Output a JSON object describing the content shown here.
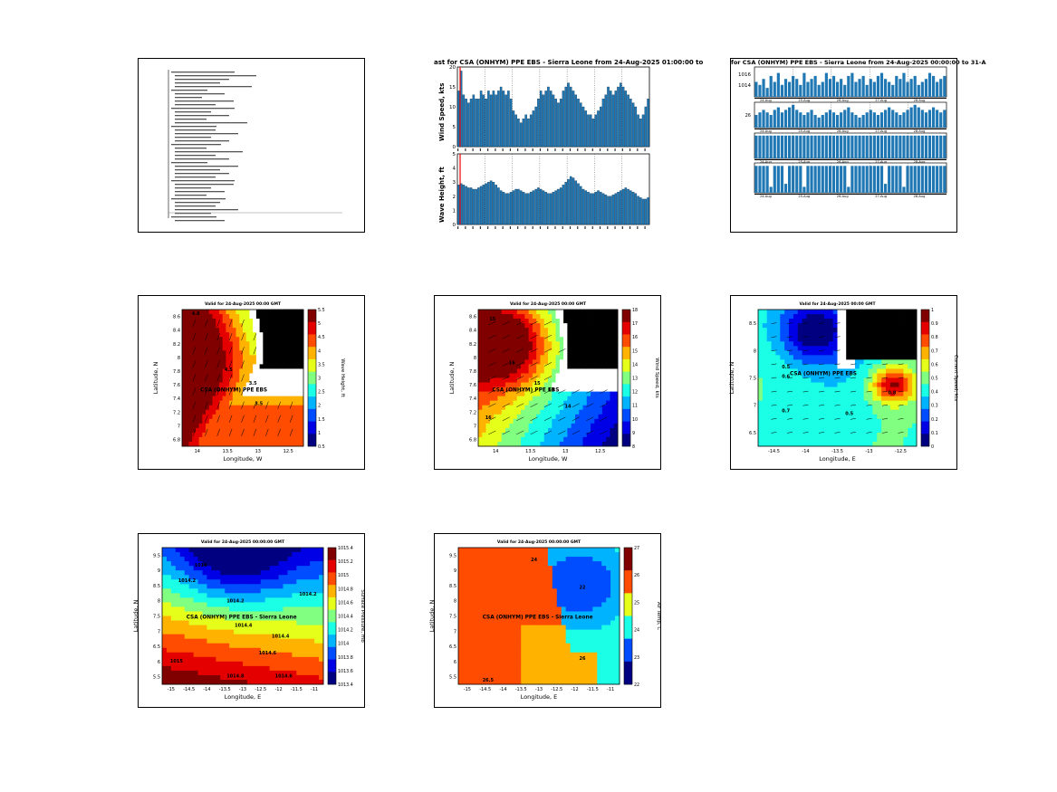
{
  "panels": {
    "report": {
      "label": "forecast-summary-text"
    },
    "wind_wave_bars": {
      "title": "ast for CSA (ONHYM) PPE EBS - Sierra Leone from 24-Aug-2025 01:00:00 to",
      "top_ylabel": "Wind Speed, kts",
      "bottom_ylabel": "Wave Height, ft",
      "top_ylim": [
        0,
        20
      ],
      "top_yticks": [
        "0",
        "5",
        "10",
        "15",
        "20"
      ],
      "bottom_ylim": [
        0,
        5
      ],
      "bottom_yticks": [
        "0",
        "1",
        "2",
        "3",
        "4",
        "5"
      ],
      "wind_values": [
        14,
        19,
        13,
        12,
        11,
        12,
        13,
        12,
        12,
        14,
        13,
        12,
        14,
        13,
        14,
        13,
        14,
        15,
        14,
        13,
        14,
        12,
        9,
        8,
        7,
        6,
        7,
        8,
        7,
        8,
        9,
        10,
        12,
        14,
        13,
        14,
        15,
        14,
        13,
        12,
        11,
        12,
        14,
        15,
        16,
        15,
        14,
        13,
        12,
        11,
        10,
        9,
        8,
        8,
        7,
        8,
        9,
        10,
        12,
        13,
        15,
        14,
        13,
        14,
        15,
        16,
        15,
        14,
        13,
        12,
        11,
        10,
        8,
        7,
        8,
        10,
        12
      ],
      "wave_values": [
        2.8,
        2.9,
        2.8,
        2.7,
        2.6,
        2.6,
        2.5,
        2.5,
        2.6,
        2.7,
        2.8,
        2.9,
        3.0,
        3.1,
        3.0,
        2.8,
        2.6,
        2.4,
        2.3,
        2.2,
        2.2,
        2.3,
        2.4,
        2.5,
        2.5,
        2.4,
        2.3,
        2.2,
        2.2,
        2.3,
        2.4,
        2.5,
        2.6,
        2.5,
        2.4,
        2.3,
        2.2,
        2.2,
        2.3,
        2.4,
        2.5,
        2.6,
        2.8,
        3.0,
        3.2,
        3.4,
        3.3,
        3.1,
        2.9,
        2.7,
        2.5,
        2.4,
        2.3,
        2.2,
        2.2,
        2.3,
        2.4,
        2.3,
        2.2,
        2.1,
        2.0,
        2.0,
        2.1,
        2.2,
        2.3,
        2.4,
        2.5,
        2.6,
        2.5,
        2.4,
        2.3,
        2.2,
        2.0,
        1.9,
        1.8,
        1.8,
        1.9
      ]
    },
    "multi_bars": {
      "title": "for CSA (ONHYM) PPE EBS - Sierra Leone from 24-Aug-2025 00:00:00 to 31-A",
      "yticks_top": [
        "1016",
        "1014"
      ],
      "mid_tick": "26",
      "date_labels": [
        "24-Aug",
        "25-Aug",
        "26-Aug",
        "27-Aug",
        "28-Aug"
      ],
      "row1": [
        5,
        4,
        6,
        3,
        7,
        5,
        8,
        4,
        6,
        5,
        7,
        6,
        4,
        8,
        5,
        6,
        7,
        4,
        5,
        8,
        6,
        7,
        5,
        6,
        4,
        7,
        8,
        5,
        6,
        7,
        4,
        6,
        5,
        7,
        8,
        6,
        5,
        4,
        7,
        6,
        8,
        5,
        6,
        7,
        4,
        5,
        6,
        8,
        7,
        5,
        6,
        7
      ],
      "row2": [
        5,
        6,
        7,
        6,
        5,
        7,
        8,
        6,
        7,
        8,
        9,
        7,
        6,
        5,
        6,
        7,
        5,
        4,
        5,
        6,
        7,
        6,
        5,
        6,
        7,
        8,
        6,
        5,
        4,
        5,
        6,
        7,
        6,
        5,
        6,
        7,
        8,
        7,
        6,
        5,
        6,
        7,
        8,
        9,
        8,
        7,
        6,
        7,
        8,
        7,
        6,
        7
      ],
      "row3": [
        9,
        9,
        9,
        9,
        9,
        9,
        9,
        9,
        9,
        9,
        9,
        9,
        9,
        9,
        9,
        9,
        9,
        9,
        9,
        9,
        9,
        9,
        9,
        9,
        9,
        9,
        9,
        9,
        9,
        9,
        9,
        9,
        9,
        9,
        9,
        9,
        9,
        9,
        9,
        9,
        9,
        9,
        9,
        9,
        9,
        9,
        9,
        9,
        9,
        9,
        9,
        9
      ],
      "row4": [
        9,
        9,
        9,
        9,
        2,
        9,
        9,
        9,
        3,
        9,
        9,
        9,
        9,
        2,
        9,
        9,
        9,
        9,
        9,
        9,
        9,
        9,
        9,
        9,
        9,
        2,
        9,
        9,
        9,
        9,
        9,
        9,
        9,
        9,
        9,
        3,
        9,
        9,
        9,
        9,
        2,
        9,
        9,
        9,
        9,
        9,
        9,
        9,
        9,
        9,
        9,
        9
      ]
    },
    "map_wave": {
      "title": "Valid for 24-Aug-2025 00:00 GMT",
      "xlabel": "Longitude, W",
      "ylabel": "Latitude, N",
      "site_label": "CSA (ONHYM) PPE EBS",
      "xticks": [
        "14",
        "13.5",
        "13",
        "12.5"
      ],
      "yticks": [
        "8.6",
        "8.4",
        "8.2",
        "8",
        "7.8",
        "7.6",
        "7.4",
        "7.2",
        "7",
        "6.8"
      ],
      "colorbar_label": "Wave Height, ft",
      "colorbar_ticks": [
        "5.5",
        "5",
        "4.5",
        "4",
        "3.5",
        "3",
        "2.5",
        "2",
        "1.5",
        "1",
        "0.5"
      ],
      "contour_labels": [
        "4.8",
        "4.5",
        "3.5",
        "3.5"
      ]
    },
    "map_wind": {
      "title": "Valid for 24-Aug-2025 00:00 GMT",
      "xlabel": "Longitude, W",
      "ylabel": "Latitude, N",
      "site_label": "CSA (ONHYM) PPE EBS",
      "xticks": [
        "14",
        "13.5",
        "13",
        "12.5"
      ],
      "yticks": [
        "8.6",
        "8.4",
        "8.2",
        "8",
        "7.8",
        "7.6",
        "7.4",
        "7.2",
        "7",
        "6.8"
      ],
      "colorbar_label": "Wind Speed, kts",
      "colorbar_ticks": [
        "18",
        "17",
        "16",
        "15",
        "14",
        "13",
        "12",
        "11",
        "10",
        "9",
        "8"
      ],
      "contour_labels": [
        "15",
        "16",
        "15",
        "14",
        "13",
        "16"
      ]
    },
    "map_current": {
      "title": "Valid for 24-Aug-2025 00:00 GMT",
      "xlabel": "Longitude, E",
      "ylabel": "Latitude, N",
      "site_label": "CSA (ONHYM) PPE EBS",
      "xticks": [
        "-14.5",
        "-14",
        "-13.5",
        "-13",
        "-12.5"
      ],
      "yticks": [
        "8.5",
        "8",
        "7.5",
        "7",
        "6.5"
      ],
      "colorbar_label": "Current Speed, kts",
      "colorbar_ticks": [
        "1",
        "0.9",
        "0.8",
        "0.7",
        "0.6",
        "0.5",
        "0.4",
        "0.3",
        "0.2",
        "0.1",
        "0"
      ],
      "contour_labels": [
        "0.5",
        "0.6",
        "0.7",
        "0.5",
        "0.8"
      ]
    },
    "map_pressure": {
      "title": "Valid for 24-Aug-2025 00:00:00 GMT",
      "xlabel": "Longitude, E",
      "ylabel": "Latitude, N",
      "site_label": "CSA (ONHYM) PPE EBS - Sierra Leone",
      "xticks": [
        "-15",
        "-14.5",
        "-14",
        "-13.5",
        "-13",
        "-12.5",
        "-12",
        "-11.5",
        "-11"
      ],
      "yticks": [
        "9.5",
        "9",
        "8.5",
        "8",
        "7.5",
        "7",
        "6.5",
        "6",
        "5.5"
      ],
      "colorbar_label": "Surface Pressure, mb",
      "colorbar_ticks": [
        "1015.4",
        "1015.2",
        "1015",
        "1014.8",
        "1014.6",
        "1014.4",
        "1014.2",
        "1014",
        "1013.8",
        "1013.6",
        "1013.4"
      ],
      "contour_labels": [
        "1014.2",
        "1014",
        "1014.2",
        "1014.4",
        "1014.6",
        "1014.8",
        "1015",
        "1014.2",
        "1014.4",
        "1014.6"
      ]
    },
    "map_temp": {
      "title": "Valid for 24-Aug-2025 00:00:00 GMT",
      "xlabel": "Longitude, E",
      "ylabel": "Latitude, N",
      "site_label": "CSA (ONHYM) PPE EBS - Sierra Leone",
      "xticks": [
        "-15",
        "-14.5",
        "-14",
        "-13.5",
        "-13",
        "-12.5",
        "-12",
        "-11.5",
        "-11"
      ],
      "yticks": [
        "9.5",
        "9",
        "8.5",
        "8",
        "7.5",
        "7",
        "6.5",
        "6",
        "5.5"
      ],
      "colorbar_label": "Air Temp, C",
      "colorbar_ticks": [
        "27",
        "26",
        "25",
        "24",
        "23",
        "22"
      ],
      "contour_labels": [
        "24",
        "22",
        "26",
        "26.5"
      ]
    }
  },
  "chart_data": [
    {
      "type": "bar",
      "title": "ast for CSA (ONHYM) PPE EBS - Sierra Leone from 24-Aug-2025 01:00:00 to",
      "ylabel": "Wind Speed, kts",
      "ylim": [
        0,
        20
      ],
      "series": [
        {
          "values": "see panels.wind_wave_bars.wind_values"
        }
      ]
    },
    {
      "type": "bar",
      "ylabel": "Wave Height, ft",
      "ylim": [
        0,
        5
      ],
      "series": [
        {
          "values": "see panels.wind_wave_bars.wave_values"
        }
      ]
    },
    {
      "type": "heatmap",
      "title": "Valid for 24-Aug-2025 00:00 GMT",
      "xlabel": "Longitude, W",
      "ylabel": "Latitude, N",
      "colorbar": "Wave Height, ft"
    },
    {
      "type": "heatmap",
      "title": "Valid for 24-Aug-2025 00:00 GMT",
      "xlabel": "Longitude, W",
      "ylabel": "Latitude, N",
      "colorbar": "Wind Speed, kts"
    },
    {
      "type": "heatmap",
      "title": "Valid for 24-Aug-2025 00:00 GMT",
      "xlabel": "Longitude, E",
      "ylabel": "Latitude, N",
      "colorbar": "Current Speed, kts"
    },
    {
      "type": "heatmap",
      "title": "Valid for 24-Aug-2025 00:00:00 GMT",
      "xlabel": "Longitude, E",
      "ylabel": "Latitude, N",
      "colorbar": "Surface Pressure, mb"
    },
    {
      "type": "heatmap",
      "title": "Valid for 24-Aug-2025 00:00:00 GMT",
      "xlabel": "Longitude, E",
      "ylabel": "Latitude, N",
      "colorbar": "Air Temp, C"
    }
  ]
}
